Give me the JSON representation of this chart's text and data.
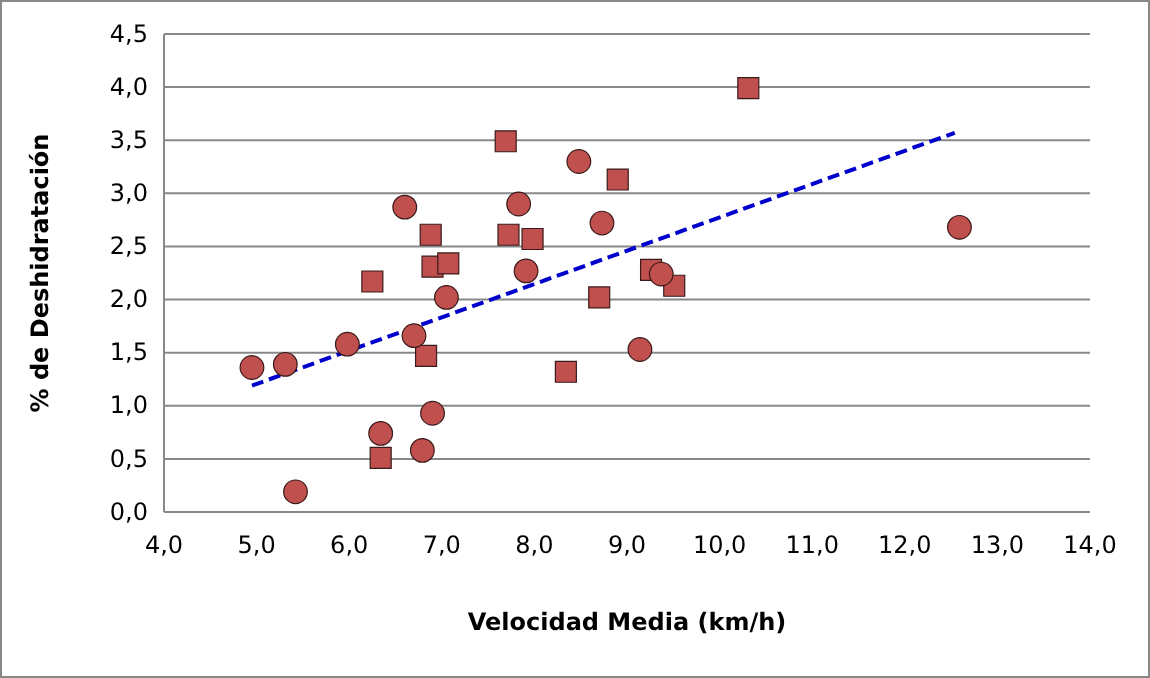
{
  "chart_data": {
    "type": "scatter",
    "xlabel": "Velocidad Media (km/h)",
    "ylabel": "% de Deshidratación",
    "xlim": [
      4,
      14
    ],
    "ylim": [
      0,
      4.5
    ],
    "xticks": [
      {
        "value": 4,
        "label": "4,0"
      },
      {
        "value": 5,
        "label": "5,0"
      },
      {
        "value": 6,
        "label": "6,0"
      },
      {
        "value": 7,
        "label": "7,0"
      },
      {
        "value": 8,
        "label": "8,0"
      },
      {
        "value": 9,
        "label": "9,0"
      },
      {
        "value": 10,
        "label": "10,0"
      },
      {
        "value": 11,
        "label": "11,0"
      },
      {
        "value": 12,
        "label": "12,0"
      },
      {
        "value": 13,
        "label": "13,0"
      },
      {
        "value": 14,
        "label": "14,0"
      }
    ],
    "yticks": [
      {
        "value": 0,
        "label": "0,0"
      },
      {
        "value": 0.5,
        "label": "0,5"
      },
      {
        "value": 1,
        "label": "1,0"
      },
      {
        "value": 1.5,
        "label": "1,5"
      },
      {
        "value": 2,
        "label": "2,0"
      },
      {
        "value": 2.5,
        "label": "2,5"
      },
      {
        "value": 3,
        "label": "3,0"
      },
      {
        "value": 3.5,
        "label": "3,5"
      },
      {
        "value": 4,
        "label": "4,0"
      },
      {
        "value": 4.5,
        "label": "4,5"
      }
    ],
    "grid": "y",
    "series": [
      {
        "marker": "circle",
        "color": "#c0504d",
        "x": [
          4.95,
          5.31,
          5.42,
          5.98,
          6.34,
          6.6,
          6.7,
          6.79,
          6.9,
          7.05,
          7.83,
          7.91,
          8.48,
          8.73,
          9.14,
          9.37,
          12.59
        ],
        "values": [
          1.36,
          1.39,
          0.19,
          1.58,
          0.74,
          2.87,
          1.66,
          0.58,
          0.93,
          2.02,
          2.9,
          2.27,
          3.3,
          2.72,
          1.53,
          2.24,
          2.68
        ]
      },
      {
        "marker": "square",
        "color": "#c0504d",
        "x": [
          6.25,
          6.34,
          6.83,
          6.88,
          6.9,
          7.07,
          7.69,
          7.72,
          7.98,
          8.34,
          8.9,
          8.7,
          9.26,
          9.51,
          10.31
        ],
        "values": [
          2.17,
          0.51,
          1.47,
          2.61,
          2.31,
          2.34,
          3.49,
          2.61,
          2.57,
          1.32,
          3.13,
          2.02,
          2.28,
          2.13,
          3.99
        ]
      },
      {
        "type": "line",
        "marker": "none",
        "line_style": "dashed",
        "color": "#0000cc",
        "x": [
          4.95,
          12.54
        ],
        "values": [
          1.19,
          3.57
        ]
      }
    ]
  }
}
